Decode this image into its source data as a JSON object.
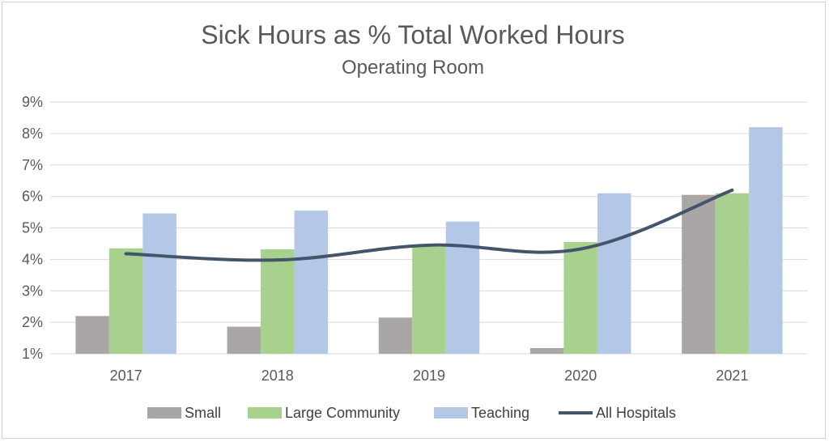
{
  "chart_data": {
    "type": "bar",
    "title": "Sick Hours as % Total Worked Hours",
    "subtitle": "Operating Room",
    "categories": [
      "2017",
      "2018",
      "2019",
      "2020",
      "2021"
    ],
    "ylim": [
      1,
      9
    ],
    "yticks": [
      "1%",
      "2%",
      "3%",
      "4%",
      "5%",
      "6%",
      "7%",
      "8%",
      "9%"
    ],
    "ytick_values": [
      1,
      2,
      3,
      4,
      5,
      6,
      7,
      8,
      9
    ],
    "grid": true,
    "legend_position": "bottom",
    "series": [
      {
        "name": "Small",
        "kind": "bar",
        "color": "#aba6a6",
        "values": [
          2.2,
          1.86,
          2.15,
          1.18,
          6.05
        ]
      },
      {
        "name": "Large Community",
        "kind": "bar",
        "color": "#a9d18e",
        "values": [
          4.35,
          4.32,
          4.4,
          4.55,
          6.1
        ]
      },
      {
        "name": "Teaching",
        "kind": "bar",
        "color": "#b4c7e7",
        "values": [
          5.46,
          5.55,
          5.2,
          6.1,
          8.2
        ]
      },
      {
        "name": "All Hospitals",
        "kind": "line",
        "color": "#44546a",
        "values": [
          4.18,
          3.98,
          4.45,
          4.33,
          6.2
        ]
      }
    ]
  }
}
